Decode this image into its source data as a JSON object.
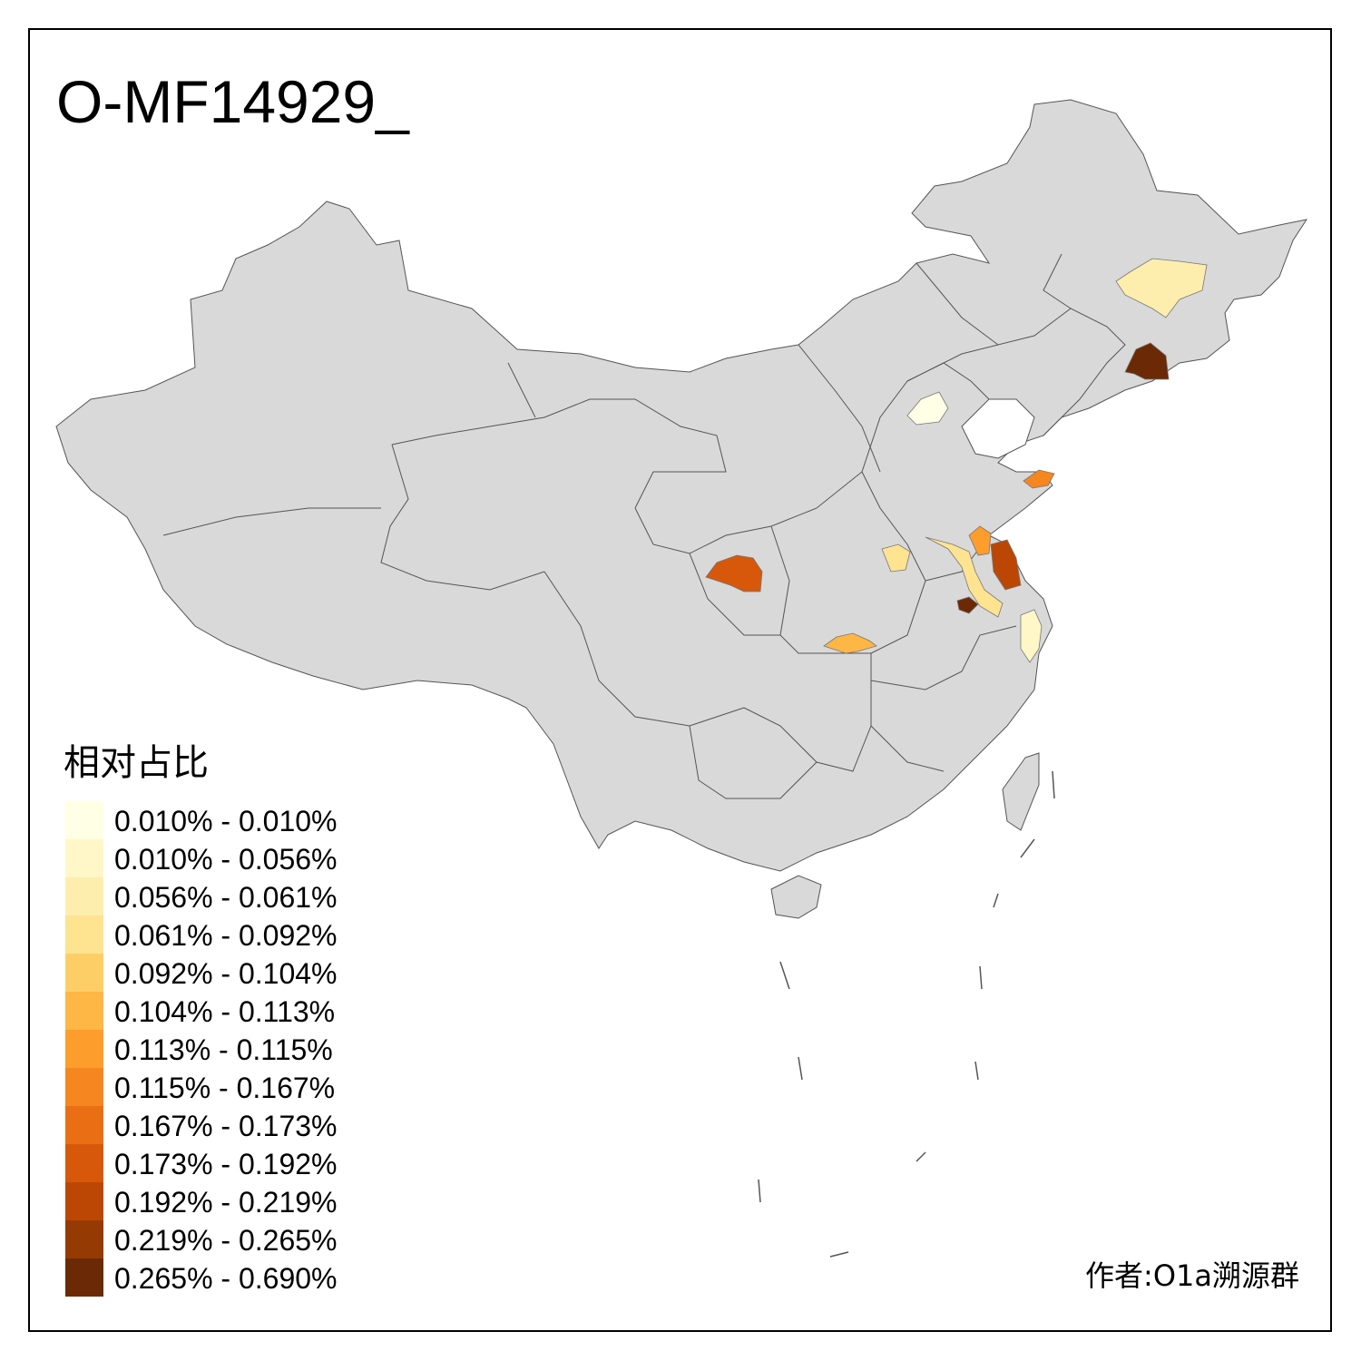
{
  "map": {
    "title": "O-MF14929_",
    "land_color": "#d9d9d9",
    "border_color": "#555555",
    "regions": [
      {
        "name": "heilongjiang-region",
        "level": 2
      },
      {
        "name": "jilin-region",
        "level": 12
      },
      {
        "name": "beijing-region",
        "level": 0
      },
      {
        "name": "shandong-east-region",
        "level": 7
      },
      {
        "name": "jiangsu-north-region",
        "level": 6
      },
      {
        "name": "jiangsu-coast-region",
        "level": 10
      },
      {
        "name": "jiangsu-central-region",
        "level": 3
      },
      {
        "name": "anhui-south-region",
        "level": 12
      },
      {
        "name": "henan-region",
        "level": 3
      },
      {
        "name": "gansu-region",
        "level": 9
      },
      {
        "name": "hubei-region",
        "level": 5
      },
      {
        "name": "zhejiang-region",
        "level": 1
      }
    ]
  },
  "legend": {
    "title": "相对占比",
    "bins": [
      {
        "label": "0.010% - 0.010%",
        "color": "#ffffe5"
      },
      {
        "label": "0.010% - 0.056%",
        "color": "#fff7c8"
      },
      {
        "label": "0.056% - 0.061%",
        "color": "#feeeae"
      },
      {
        "label": "0.061% - 0.092%",
        "color": "#fee391"
      },
      {
        "label": "0.092% - 0.104%",
        "color": "#fece66"
      },
      {
        "label": "0.104% - 0.113%",
        "color": "#feb644"
      },
      {
        "label": "0.113% - 0.115%",
        "color": "#fd9d2c"
      },
      {
        "label": "0.115% - 0.167%",
        "color": "#f6861f"
      },
      {
        "label": "0.167% - 0.173%",
        "color": "#ea6f14"
      },
      {
        "label": "0.173% - 0.192%",
        "color": "#d7580a"
      },
      {
        "label": "0.192% - 0.219%",
        "color": "#bc4704"
      },
      {
        "label": "0.219% - 0.265%",
        "color": "#963a04"
      },
      {
        "label": "0.265% - 0.690%",
        "color": "#6b2a05"
      }
    ]
  },
  "credit": "作者:O1a溯源群"
}
